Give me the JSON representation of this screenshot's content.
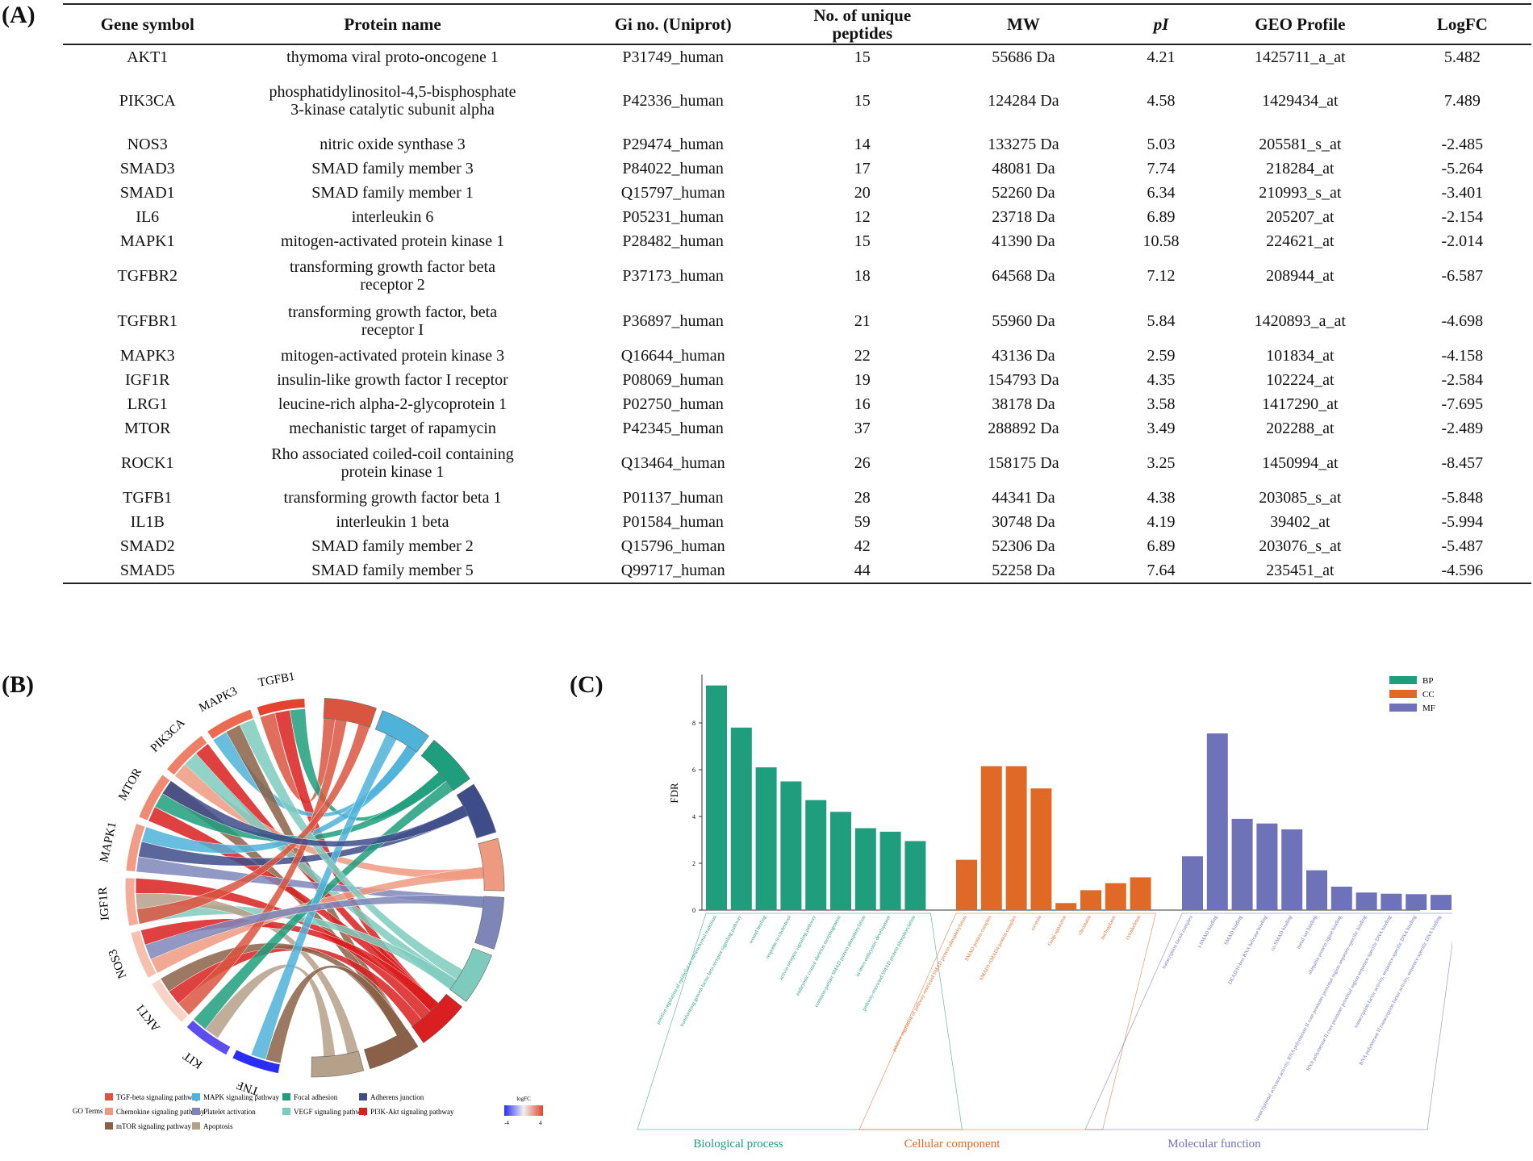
{
  "panels": {
    "a": "(A)",
    "b": "(B)",
    "c": "(C)"
  },
  "table": {
    "headers": [
      "Gene symbol",
      "Protein name",
      "Gi no. (Uniprot)",
      "No. of unique peptides",
      "MW",
      "pI",
      "GEO Profile",
      "LogFC"
    ],
    "rows": [
      [
        "AKT1",
        "thymoma viral proto-oncogene 1",
        "P31749_human",
        "15",
        "55686 Da",
        "4.21",
        "1425711_a_at",
        "5.482"
      ],
      [
        "PIK3CA",
        "phosphatidylinositol-4,5-bisphosphate 3-kinase catalytic subunit alpha",
        "P42336_human",
        "15",
        "124284 Da",
        "4.58",
        "1429434_at",
        "7.489"
      ],
      [
        "NOS3",
        "nitric oxide synthase 3",
        "P29474_human",
        "14",
        "133275 Da",
        "5.03",
        "205581_s_at",
        "-2.485"
      ],
      [
        "SMAD3",
        "SMAD family member 3",
        "P84022_human",
        "17",
        "48081 Da",
        "7.74",
        "218284_at",
        "-5.264"
      ],
      [
        "SMAD1",
        "SMAD family member 1",
        "Q15797_human",
        "20",
        "52260 Da",
        "6.34",
        "210993_s_at",
        "-3.401"
      ],
      [
        "IL6",
        "interleukin 6",
        "P05231_human",
        "12",
        "23718 Da",
        "6.89",
        "205207_at",
        "-2.154"
      ],
      [
        "MAPK1",
        "mitogen-activated protein kinase 1",
        "P28482_human",
        "15",
        "41390 Da",
        "10.58",
        "224621_at",
        "-2.014"
      ],
      [
        "TGFBR2",
        "transforming growth factor beta receptor 2",
        "P37173_human",
        "18",
        "64568 Da",
        "7.12",
        "208944_at",
        "-6.587"
      ],
      [
        "TGFBR1",
        "transforming growth factor, beta receptor I",
        "P36897_human",
        "21",
        "55960 Da",
        "5.84",
        "1420893_a_at",
        "-4.698"
      ],
      [
        "MAPK3",
        "mitogen-activated protein kinase 3",
        "Q16644_human",
        "22",
        "43136 Da",
        "2.59",
        "101834_at",
        "-4.158"
      ],
      [
        "IGF1R",
        "insulin-like growth factor I receptor",
        "P08069_human",
        "19",
        "154793 Da",
        "4.35",
        "102224_at",
        "-2.584"
      ],
      [
        "LRG1",
        "leucine-rich alpha-2-glycoprotein 1",
        "P02750_human",
        "16",
        "38178 Da",
        "3.58",
        "1417290_at",
        "-7.695"
      ],
      [
        "MTOR",
        "mechanistic target of rapamycin",
        "P42345_human",
        "37",
        "288892 Da",
        "3.49",
        "202288_at",
        "-2.489"
      ],
      [
        "ROCK1",
        "Rho associated coiled-coil containing protein kinase 1",
        "Q13464_human",
        "26",
        "158175 Da",
        "3.25",
        "1450994_at",
        "-8.457"
      ],
      [
        "TGFB1",
        "transforming growth factor beta 1",
        "P01137_human",
        "28",
        "44341 Da",
        "4.38",
        "203085_s_at",
        "-5.848"
      ],
      [
        "IL1B",
        "interleukin 1 beta",
        "P01584_human",
        "59",
        "30748 Da",
        "4.19",
        "39402_at",
        "-5.994"
      ],
      [
        "SMAD2",
        "SMAD family member 2",
        "Q15796_human",
        "42",
        "52306 Da",
        "6.89",
        "203076_s_at",
        "-5.487"
      ],
      [
        "SMAD5",
        "SMAD family member 5",
        "Q99717_human",
        "44",
        "52258 Da",
        "7.64",
        "235451_at",
        "-4.596"
      ]
    ]
  },
  "chord": {
    "genes": [
      "TGFB1",
      "MAPK3",
      "PIK3CA",
      "MTOR",
      "MAPK1",
      "IGF1R",
      "NOS3",
      "AKT1",
      "KIT",
      "TNF"
    ],
    "gene_colors": [
      "#e5432f",
      "#ec6a50",
      "#ef7f66",
      "#f08a72",
      "#f29c86",
      "#f4ab98",
      "#f6bfae",
      "#f9d3c6",
      "#5b4df0",
      "#2a2ef2"
    ],
    "pathways": [
      {
        "name": "TGF-beta signaling pathway",
        "color": "#d9553f"
      },
      {
        "name": "MAPK signaling pathway",
        "color": "#4fb3d9"
      },
      {
        "name": "Focal adhesion",
        "color": "#1f9e7d"
      },
      {
        "name": "Adherens junction",
        "color": "#3e4c8a"
      },
      {
        "name": "Chemokine signaling pathway",
        "color": "#ee9a80"
      },
      {
        "name": "Platelet activation",
        "color": "#7e86b8"
      },
      {
        "name": "VEGF signaling pathway",
        "color": "#7ecbbd"
      },
      {
        "name": "PI3K-Akt signaling pathway",
        "color": "#d91f1f"
      },
      {
        "name": "mTOR signaling pathway",
        "color": "#8a6148"
      },
      {
        "name": "Apoptosis",
        "color": "#b5a08a"
      }
    ],
    "legend_title": "GO Terms",
    "scale_title": "logFC",
    "scale_min": "-4",
    "scale_max": "4"
  },
  "chart_data": {
    "type": "bar",
    "ylabel": "FDR",
    "ylim": [
      0,
      10
    ],
    "yticks": [
      "0",
      "2",
      "4",
      "6",
      "8"
    ],
    "legend": [
      {
        "key": "BP",
        "color": "#1f9e7d"
      },
      {
        "key": "CC",
        "color": "#e06a25"
      },
      {
        "key": "MF",
        "color": "#6e72b8"
      }
    ],
    "groups": [
      {
        "name": "Biological process",
        "key": "BP",
        "color": "#1f9e7d",
        "categories": [
          "positive regulation of epithelial to mesenchymal transition",
          "transforming growth factor beta receptor signaling pathway",
          "wound healing",
          "response to cholesterol",
          "activin receptor signaling pathway",
          "embryonic cranial skeleton morphogenesis",
          "common-partner SMAD protein phosphorylation",
          "in utero embryonic development",
          "pathway-restricted SMAD protein phosphorylation"
        ],
        "values": [
          9.6,
          7.8,
          6.1,
          5.5,
          4.7,
          4.2,
          3.5,
          3.35,
          2.95
        ]
      },
      {
        "name": "Cellular component",
        "key": "CC",
        "color": "#e06a25",
        "categories": [
          "positive regulation of pathway-restricted SMAD protein phosphorylation",
          "SMAD protein complex",
          "SMAD1-SMAD4 protein complex",
          "caveola",
          "Golgi apparatus",
          "chromatin",
          "nucleoplasm",
          "cytoskeleton"
        ],
        "values": [
          2.15,
          6.15,
          6.15,
          5.2,
          0.3,
          0.85,
          1.15,
          1.4
        ]
      },
      {
        "name": "Molecular function",
        "key": "MF",
        "color": "#6e72b8",
        "categories": [
          "transcription factor complex",
          "I-SMAD binding",
          "SMAD binding",
          "DEAD/H-box RNA helicase binding",
          "co-SMAD binding",
          "metal ion binding",
          "ubiquitin protein ligase binding",
          "transcriptional activator activity, RNA polymerase II core promoter proximal region sequence-specific binding",
          "RNA polymerase II core promoter proximal region sequence-specific DNA binding",
          "transcription factor activity, sequence-specific DNA binding",
          "RNA polymerase II transcription factor activity, sequence-specific DNA binding"
        ],
        "values": [
          2.3,
          7.55,
          3.9,
          3.7,
          3.45,
          1.7,
          1.0,
          0.75,
          0.7,
          0.68,
          0.65
        ]
      }
    ]
  }
}
